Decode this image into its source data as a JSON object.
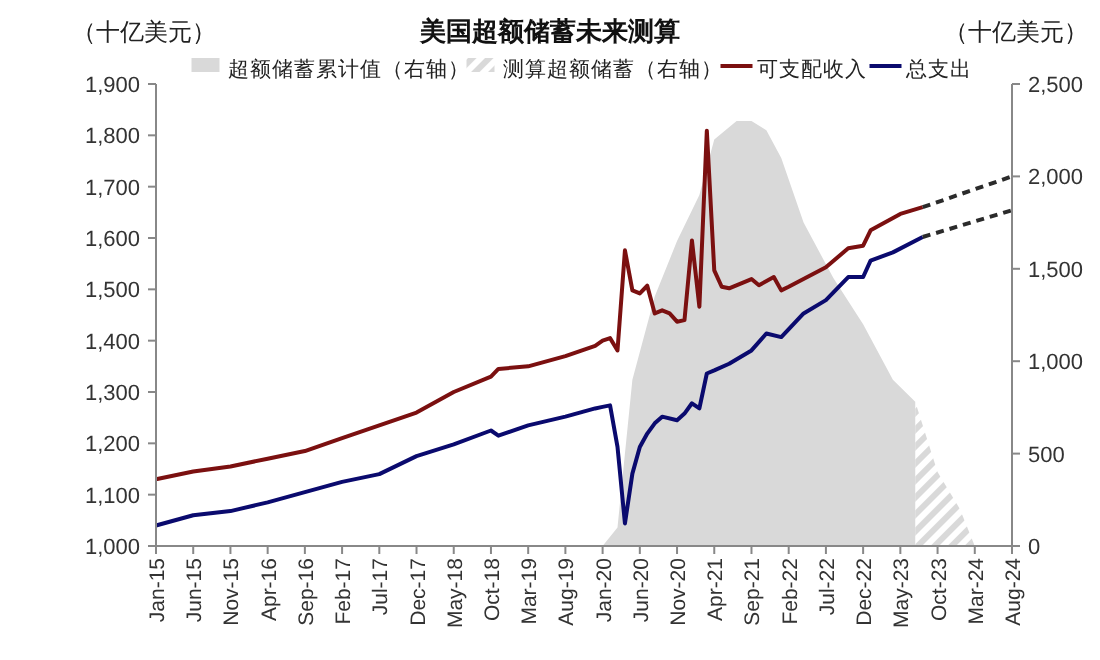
{
  "chart_data": {
    "type": "line",
    "title": "美国超额储蓄未来测算",
    "ylabel": "（十亿美元）",
    "y2label": "（十亿美元）",
    "legend": "top",
    "xlim": [
      "2015-01",
      "2024-08"
    ],
    "xticks": [
      {
        "value": "2015-01",
        "label": "Jan-15"
      },
      {
        "value": "2015-06",
        "label": "Jun-15"
      },
      {
        "value": "2015-11",
        "label": "Nov-15"
      },
      {
        "value": "2016-04",
        "label": "Apr-16"
      },
      {
        "value": "2016-09",
        "label": "Sep-16"
      },
      {
        "value": "2017-02",
        "label": "Feb-17"
      },
      {
        "value": "2017-07",
        "label": "Jul-17"
      },
      {
        "value": "2017-12",
        "label": "Dec-17"
      },
      {
        "value": "2018-05",
        "label": "May-18"
      },
      {
        "value": "2018-10",
        "label": "Oct-18"
      },
      {
        "value": "2019-03",
        "label": "Mar-19"
      },
      {
        "value": "2019-08",
        "label": "Aug-19"
      },
      {
        "value": "2020-01",
        "label": "Jan-20"
      },
      {
        "value": "2020-06",
        "label": "Jun-20"
      },
      {
        "value": "2020-11",
        "label": "Nov-20"
      },
      {
        "value": "2021-04",
        "label": "Apr-21"
      },
      {
        "value": "2021-09",
        "label": "Sep-21"
      },
      {
        "value": "2022-02",
        "label": "Feb-22"
      },
      {
        "value": "2022-07",
        "label": "Jul-22"
      },
      {
        "value": "2022-12",
        "label": "Dec-22"
      },
      {
        "value": "2023-05",
        "label": "May-23"
      },
      {
        "value": "2023-10",
        "label": "Oct-23"
      },
      {
        "value": "2024-03",
        "label": "Mar-24"
      },
      {
        "value": "2024-08",
        "label": "Aug-24"
      }
    ],
    "ylim": [
      1000,
      1900
    ],
    "yticks": [
      {
        "value": 1000,
        "label": "1,000"
      },
      {
        "value": 1100,
        "label": "1,100"
      },
      {
        "value": 1200,
        "label": "1,200"
      },
      {
        "value": 1300,
        "label": "1,300"
      },
      {
        "value": 1400,
        "label": "1,400"
      },
      {
        "value": 1500,
        "label": "1,500"
      },
      {
        "value": 1600,
        "label": "1,600"
      },
      {
        "value": 1700,
        "label": "1,700"
      },
      {
        "value": 1800,
        "label": "1,800"
      },
      {
        "value": 1900,
        "label": "1,900"
      }
    ],
    "y2lim": [
      0,
      2500
    ],
    "y2ticks": [
      0,
      500,
      {
        "value": 1000,
        "label": "1,000"
      },
      {
        "value": 1500,
        "label": "1,500"
      },
      {
        "value": 2000,
        "label": "2,000"
      },
      {
        "value": 2500,
        "label": "2,500"
      }
    ],
    "series": [
      {
        "name": "超额储蓄累计值（右轴）",
        "type": "area",
        "axis": "y2",
        "color": "#d9d9d9",
        "x": [
          "2020-01",
          "2020-03",
          "2020-05",
          "2020-08",
          "2020-11",
          "2021-02",
          "2021-04",
          "2021-07",
          "2021-09",
          "2021-11",
          "2022-01",
          "2022-04",
          "2022-08",
          "2022-12",
          "2023-04",
          "2023-07"
        ],
        "values": [
          0,
          100,
          900,
          1350,
          1650,
          1900,
          2200,
          2300,
          2300,
          2250,
          2100,
          1750,
          1450,
          1200,
          900,
          780
        ]
      },
      {
        "name": "测算超额储蓄（右轴）",
        "type": "area",
        "axis": "y2",
        "line_style": "dashed",
        "color": "#d9d9d9",
        "x": [
          "2023-07",
          "2023-10",
          "2024-01",
          "2024-03"
        ],
        "values": [
          780,
          400,
          200,
          0
        ]
      },
      {
        "name": "可支配收入",
        "color": "#7b1010",
        "x": [
          "2015-01",
          "2015-06",
          "2015-11",
          "2016-04",
          "2016-09",
          "2017-02",
          "2017-07",
          "2017-12",
          "2018-05",
          "2018-10",
          "2018-11",
          "2019-03",
          "2019-08",
          "2019-12",
          "2020-01",
          "2020-02",
          "2020-03",
          "2020-04",
          "2020-05",
          "2020-06",
          "2020-07",
          "2020-08",
          "2020-09",
          "2020-10",
          "2020-11",
          "2020-12",
          "2021-01",
          "2021-02",
          "2021-03",
          "2021-04",
          "2021-05",
          "2021-06",
          "2021-09",
          "2021-10",
          "2021-12",
          "2022-01",
          "2022-02",
          "2022-07",
          "2022-10",
          "2022-12",
          "2023-01",
          "2023-05",
          "2023-08"
        ],
        "values": [
          1130,
          1145,
          1155,
          1170,
          1185,
          1210,
          1235,
          1260,
          1300,
          1330,
          1345,
          1350,
          1370,
          1390,
          1400,
          1405,
          1381,
          1576,
          1498,
          1492,
          1507,
          1453,
          1459,
          1453,
          1437,
          1440,
          1595,
          1466,
          1809,
          1537,
          1505,
          1502,
          1520,
          1508,
          1524,
          1498,
          1505,
          1543,
          1580,
          1585,
          1615,
          1647,
          1660
        ]
      },
      {
        "name": "总支出",
        "color": "#0a0a6e",
        "x": [
          "2015-01",
          "2015-06",
          "2015-11",
          "2016-04",
          "2016-09",
          "2017-02",
          "2017-07",
          "2017-12",
          "2018-05",
          "2018-10",
          "2018-11",
          "2019-03",
          "2019-08",
          "2019-12",
          "2020-01",
          "2020-02",
          "2020-03",
          "2020-04",
          "2020-05",
          "2020-06",
          "2020-07",
          "2020-08",
          "2020-09",
          "2020-11",
          "2020-12",
          "2021-01",
          "2021-02",
          "2021-03",
          "2021-04",
          "2021-06",
          "2021-09",
          "2021-11",
          "2022-01",
          "2022-04",
          "2022-07",
          "2022-10",
          "2022-12",
          "2023-01",
          "2023-04",
          "2023-08"
        ],
        "values": [
          1040,
          1060,
          1068,
          1085,
          1105,
          1125,
          1140,
          1175,
          1198,
          1225,
          1215,
          1235,
          1252,
          1268,
          1271,
          1274,
          1193,
          1044,
          1141,
          1193,
          1219,
          1239,
          1252,
          1245,
          1258,
          1278,
          1268,
          1336,
          1342,
          1355,
          1381,
          1414,
          1407,
          1453,
          1479,
          1524,
          1524,
          1556,
          1572,
          1602
        ]
      },
      {
        "line_style": "dashed",
        "color": "#2b2b2b",
        "x": [
          "2023-08",
          "2024-08"
        ],
        "values": [
          1660,
          1720
        ]
      },
      {
        "line_style": "dashed",
        "color": "#2b2b2b",
        "x": [
          "2023-08",
          "2024-08"
        ],
        "values": [
          1602,
          1654
        ]
      }
    ]
  }
}
